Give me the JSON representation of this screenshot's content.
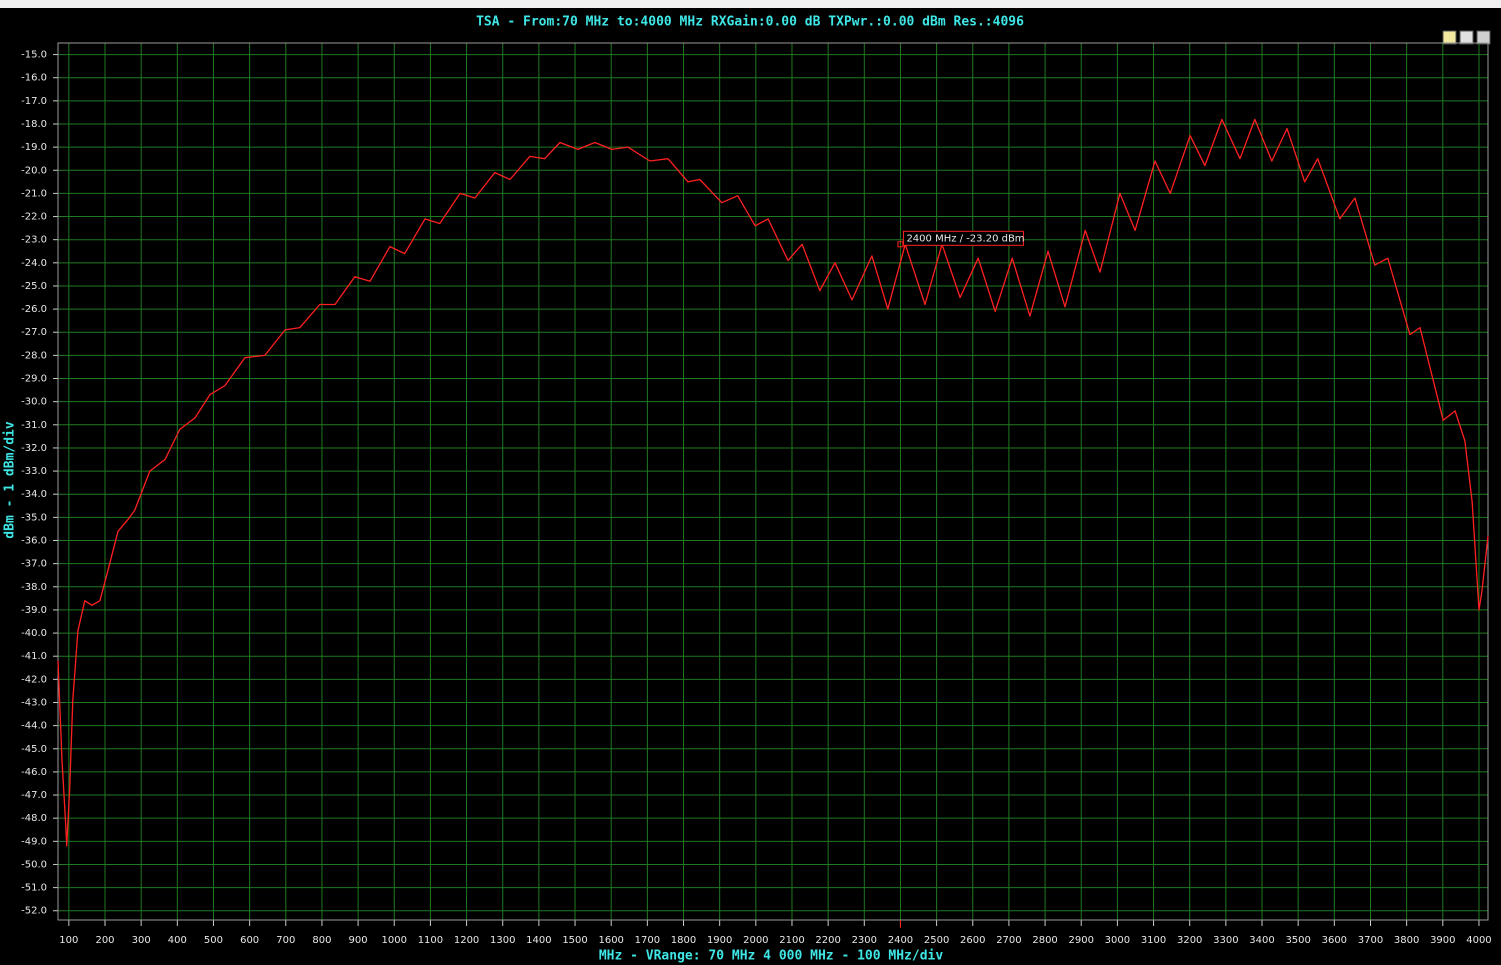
{
  "chart_data": {
    "type": "line",
    "title": "TSA - From:70 MHz to:4000 MHz RXGain:0.00 dB TXPwr.:0.00 dBm Res.:4096",
    "xlabel": "MHz - VRange: 70 MHz 4 000 MHz - 100 MHz/div",
    "ylabel": "dBm - 1 dBm/div",
    "color": "#ff2020",
    "grid": true,
    "xlim": [
      70,
      4025
    ],
    "ylim": [
      -52.4,
      -14.5
    ],
    "xticks": [
      100,
      200,
      300,
      400,
      500,
      600,
      700,
      800,
      900,
      1000,
      1100,
      1200,
      1300,
      1400,
      1500,
      1600,
      1700,
      1800,
      1900,
      2000,
      2100,
      2200,
      2300,
      2400,
      2500,
      2600,
      2700,
      2800,
      2900,
      3000,
      3100,
      3200,
      3300,
      3400,
      3500,
      3600,
      3700,
      3800,
      3900,
      4000
    ],
    "yticks": [
      {
        "value": -15,
        "label": "-15.0"
      },
      {
        "value": -16,
        "label": "-16.0"
      },
      {
        "value": -17,
        "label": "-17.0"
      },
      {
        "value": -18,
        "label": "-18.0"
      },
      {
        "value": -19,
        "label": "-19.0"
      },
      {
        "value": -20,
        "label": "-20.0"
      },
      {
        "value": -21,
        "label": "-21.0"
      },
      {
        "value": -22,
        "label": "-22.0"
      },
      {
        "value": -23,
        "label": "-23.0"
      },
      {
        "value": -24,
        "label": "-24.0"
      },
      {
        "value": -25,
        "label": "-25.0"
      },
      {
        "value": -26,
        "label": "-26.0"
      },
      {
        "value": -27,
        "label": "-27.0"
      },
      {
        "value": -28,
        "label": "-28.0"
      },
      {
        "value": -29,
        "label": "-29.0"
      },
      {
        "value": -30,
        "label": "-30.0"
      },
      {
        "value": -31,
        "label": "-31.0"
      },
      {
        "value": -32,
        "label": "-32.0"
      },
      {
        "value": -33,
        "label": "-33.0"
      },
      {
        "value": -34,
        "label": "-34.0"
      },
      {
        "value": -35,
        "label": "-35.0"
      },
      {
        "value": -36,
        "label": "-36.0"
      },
      {
        "value": -37,
        "label": "-37.0"
      },
      {
        "value": -38,
        "label": "-38.0"
      },
      {
        "value": -39,
        "label": "-39.0"
      },
      {
        "value": -40,
        "label": "-40.0"
      },
      {
        "value": -41,
        "label": "-41.0"
      },
      {
        "value": -42,
        "label": "-42.0"
      },
      {
        "value": -43,
        "label": "-43.0"
      },
      {
        "value": -44,
        "label": "-44.0"
      },
      {
        "value": -45,
        "label": "-45.0"
      },
      {
        "value": -46,
        "label": "-46.0"
      },
      {
        "value": -47,
        "label": "-47.0"
      },
      {
        "value": -48,
        "label": "-48.0"
      },
      {
        "value": -49,
        "label": "-49.0"
      },
      {
        "value": -50,
        "label": "-50.0"
      },
      {
        "value": -51,
        "label": "-51.0"
      },
      {
        "value": -52,
        "label": "-52.0"
      }
    ],
    "x": [
      70,
      81,
      92,
      94,
      102,
      111,
      125,
      144,
      164,
      186,
      208,
      236,
      263,
      282,
      324,
      366,
      407,
      449,
      490,
      532,
      587,
      642,
      698,
      739,
      794,
      836,
      891,
      933,
      988,
      1029,
      1085,
      1126,
      1182,
      1223,
      1278,
      1320,
      1375,
      1416,
      1458,
      1508,
      1555,
      1602,
      1646,
      1707,
      1757,
      1812,
      1845,
      1906,
      1950,
      1998,
      2034,
      2089,
      2128,
      2177,
      2219,
      2266,
      2321,
      2365,
      2413,
      2468,
      2515,
      2565,
      2615,
      2662,
      2709,
      2758,
      2808,
      2855,
      2911,
      2952,
      3007,
      3049,
      3104,
      3146,
      3201,
      3242,
      3289,
      3339,
      3380,
      3427,
      3469,
      3518,
      3554,
      3615,
      3657,
      3712,
      3748,
      3809,
      3837,
      3901,
      3934,
      3961,
      3981,
      4000,
      4008,
      4025
    ],
    "values": [
      -41.2,
      -45.5,
      -48.5,
      -49.2,
      -46.8,
      -42.9,
      -39.9,
      -38.6,
      -38.8,
      -38.6,
      -37.3,
      -35.6,
      -35.1,
      -34.7,
      -33.0,
      -32.5,
      -31.2,
      -30.7,
      -29.7,
      -29.3,
      -28.1,
      -28.0,
      -26.9,
      -26.8,
      -25.8,
      -25.8,
      -24.6,
      -24.8,
      -23.3,
      -23.6,
      -22.1,
      -22.3,
      -21.0,
      -21.2,
      -20.1,
      -20.4,
      -19.4,
      -19.5,
      -18.8,
      -19.1,
      -18.8,
      -19.1,
      -19.0,
      -19.6,
      -19.5,
      -20.5,
      -20.4,
      -21.4,
      -21.1,
      -22.4,
      -22.1,
      -23.9,
      -23.2,
      -25.2,
      -24.0,
      -25.6,
      -23.7,
      -26.0,
      -23.2,
      -25.8,
      -23.2,
      -25.5,
      -23.8,
      -26.1,
      -23.8,
      -26.3,
      -23.5,
      -25.9,
      -22.6,
      -24.4,
      -21.0,
      -22.6,
      -19.6,
      -21.0,
      -18.5,
      -19.8,
      -17.8,
      -19.5,
      -17.8,
      -19.6,
      -18.2,
      -20.5,
      -19.5,
      -22.1,
      -21.2,
      -24.1,
      -23.8,
      -27.1,
      -26.8,
      -30.8,
      -30.4,
      -31.7,
      -34.3,
      -39.0,
      -38.2,
      -35.8
    ],
    "marker": {
      "x": 2400,
      "y": -23.2,
      "label": "2400  MHz / -23.20 dBm"
    }
  }
}
